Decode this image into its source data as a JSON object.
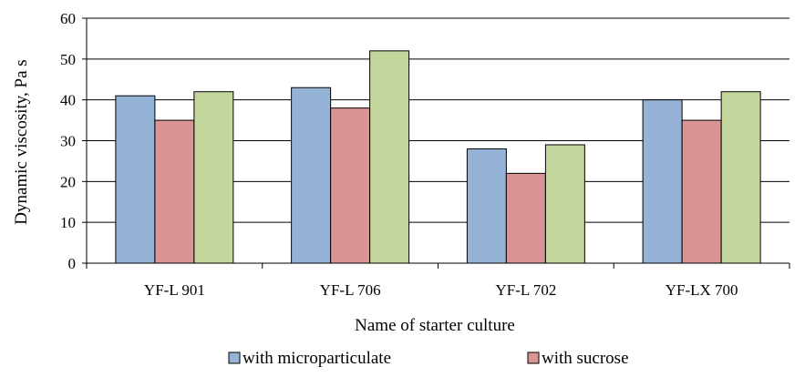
{
  "chart_data": {
    "type": "bar",
    "categories": [
      "YF-L 901",
      "YF-L 706",
      "YF-L 702",
      "YF-LX 700"
    ],
    "series": [
      {
        "name": "with microparticulate",
        "values": [
          41,
          43,
          28,
          40
        ],
        "color": "#95b3d7"
      },
      {
        "name": "with sucrose",
        "values": [
          35,
          38,
          22,
          35
        ],
        "color": "#d99594"
      },
      {
        "name": "",
        "values": [
          42,
          52,
          29,
          42
        ],
        "color": "#c3d69b"
      }
    ],
    "xlabel": "Name of starter culture",
    "ylabel": "Dynamic viscosity, Pa  s",
    "ylim": [
      0,
      60
    ],
    "yticks": [
      0,
      10,
      20,
      30,
      40,
      50,
      60
    ],
    "grid": true,
    "legend": "bottom"
  }
}
